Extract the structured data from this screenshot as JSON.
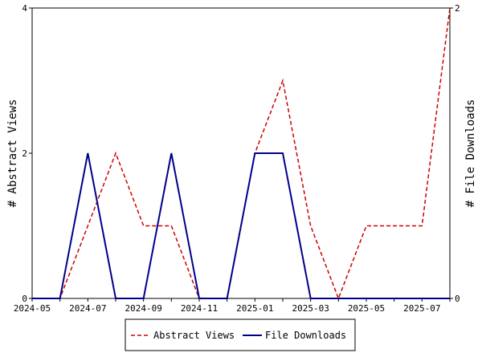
{
  "chart_data": {
    "type": "line",
    "x": [
      "2024-05",
      "2024-06",
      "2024-07",
      "2024-08",
      "2024-09",
      "2024-10",
      "2024-11",
      "2024-12",
      "2025-01",
      "2025-02",
      "2025-03",
      "2025-04",
      "2025-05",
      "2025-06",
      "2025-07",
      "2025-08"
    ],
    "x_tick_labels": [
      "2024-05",
      "2024-07",
      "2024-09",
      "2024-11",
      "2025-01",
      "2025-03",
      "2025-05",
      "2025-07"
    ],
    "series": [
      {
        "name": "Abstract Views",
        "axis": "left",
        "color": "#cc0000",
        "dashed": true,
        "values": [
          0,
          0,
          1,
          2,
          1,
          1,
          0,
          0,
          2,
          3,
          1,
          0,
          1,
          1,
          1,
          4
        ]
      },
      {
        "name": "File Downloads",
        "axis": "right",
        "color": "#00008b",
        "dashed": false,
        "values": [
          0,
          0,
          1,
          0,
          0,
          1,
          0,
          0,
          1,
          1,
          0,
          0,
          0,
          0,
          0,
          0
        ]
      }
    ],
    "y_left": {
      "label": "# Abstract Views",
      "ylim": [
        0,
        4
      ],
      "ticks": [
        "0",
        "2",
        "4"
      ]
    },
    "y_right": {
      "label": "# File Downloads",
      "ylim": [
        0,
        2
      ],
      "ticks": [
        "0",
        "2"
      ]
    },
    "legend_position": "bottom-center",
    "grid": false
  }
}
